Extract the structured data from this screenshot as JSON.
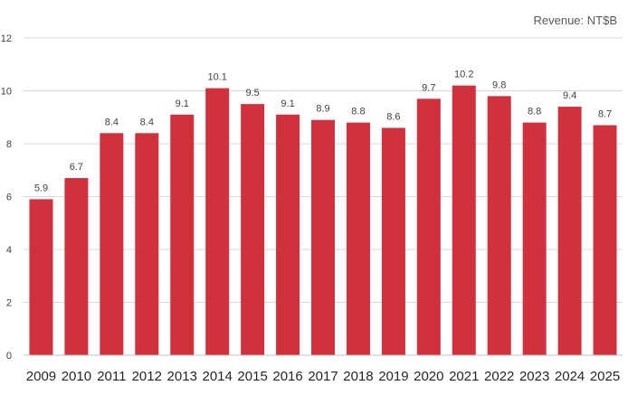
{
  "chart_data": {
    "type": "bar",
    "title": "Revenue: NT$B",
    "xlabel": "",
    "ylabel": "",
    "categories": [
      "2009",
      "2010",
      "2011",
      "2012",
      "2013",
      "2014",
      "2015",
      "2016",
      "2017",
      "2018",
      "2019",
      "2020",
      "2021",
      "2022",
      "2023",
      "2024",
      "2025"
    ],
    "values": [
      5.9,
      6.7,
      8.4,
      8.4,
      9.1,
      10.1,
      9.5,
      9.1,
      8.9,
      8.8,
      8.6,
      9.7,
      10.2,
      9.8,
      8.8,
      9.4,
      8.7
    ],
    "data_labels": [
      "5.9",
      "6.7",
      "8.4",
      "8.4",
      "9.1",
      "10.1",
      "9.5",
      "9.1",
      "8.9",
      "8.8",
      "8.6",
      "9.7",
      "10.2",
      "9.8",
      "8.8",
      "9.4",
      "8.7"
    ],
    "ylim": [
      0,
      12
    ],
    "yticks": [
      0,
      2,
      4,
      6,
      8,
      10,
      12
    ],
    "ytick_labels": [
      "0",
      "2",
      "4",
      "6",
      "8",
      "10",
      "12"
    ],
    "grid": true,
    "legend": "none",
    "bar_color": "#d0313d",
    "grid_color": "#d9d9d9"
  }
}
